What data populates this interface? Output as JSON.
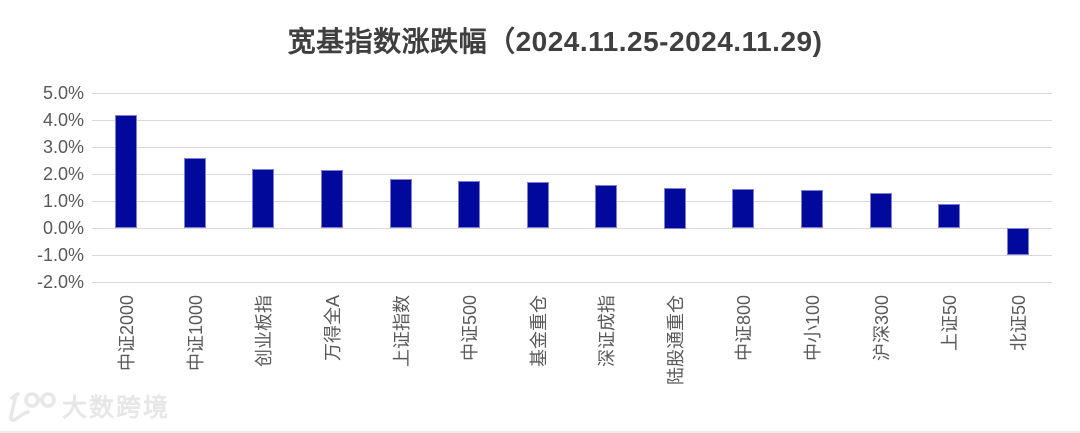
{
  "title": "宽基指数涨跌幅（2024.11.25-2024.11.29)",
  "watermark": {
    "logo": "100-logo",
    "text": "大数跨境"
  },
  "chart_data": {
    "type": "bar",
    "title": "宽基指数涨跌幅（2024.11.25-2024.11.29)",
    "categories": [
      "中证2000",
      "中证1000",
      "创业板指",
      "万得全A",
      "上证指数",
      "中证500",
      "基金重仓",
      "深证成指",
      "陆股通重仓",
      "中证800",
      "中小100",
      "沪深300",
      "上证50",
      "北证50"
    ],
    "values": [
      4.2,
      2.6,
      2.2,
      2.15,
      1.8,
      1.75,
      1.7,
      1.6,
      1.5,
      1.45,
      1.4,
      1.3,
      0.9,
      -1.0
    ],
    "unit": "%",
    "xlabel": "",
    "ylabel": "",
    "ylim": [
      -2.0,
      5.0
    ],
    "ytick_step": 1.0,
    "ytick_labels": [
      "5.0%",
      "4.0%",
      "3.0%",
      "2.0%",
      "1.0%",
      "0.0%",
      "-1.0%",
      "-2.0%"
    ],
    "grid": true,
    "legend": "none",
    "bar_color": "#00099b",
    "bar_border_color": "#7f7fd2",
    "gridline_color": "#d9d9d9",
    "axis_label_color": "#595959",
    "title_color": "#3f3f3f",
    "background_color": "#ffffff"
  }
}
